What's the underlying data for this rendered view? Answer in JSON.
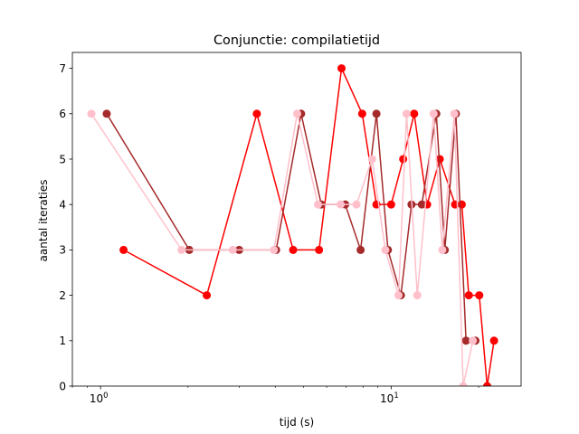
{
  "chart_data": {
    "type": "line",
    "title": "Conjunctie: compilatietijd",
    "xlabel": "tijd (s)",
    "ylabel": "aantal iteraties",
    "xscale": "log",
    "xlim": [
      0.8,
      28
    ],
    "ylim": [
      0,
      7.35
    ],
    "xticks": [
      {
        "value": 1,
        "base": "10",
        "exp": "0"
      },
      {
        "value": 10,
        "base": "10",
        "exp": "1"
      }
    ],
    "yticks": [
      "0",
      "1",
      "2",
      "3",
      "4",
      "5",
      "6",
      "7"
    ],
    "grid": false,
    "series": [
      {
        "name": "series-red",
        "color": "#ff0000",
        "x": [
          1.2,
          2.32,
          3.45,
          4.6,
          5.65,
          6.75,
          7.95,
          8.9,
          10.0,
          11.0,
          12.0,
          13.3,
          14.7,
          16.6,
          17.5,
          18.5,
          20.1,
          21.4,
          22.6
        ],
        "y": [
          3,
          2,
          6,
          3,
          3,
          7,
          6,
          4,
          4,
          5,
          6,
          4,
          5,
          4,
          4,
          2,
          2,
          0,
          1
        ]
      },
      {
        "name": "series-brown",
        "color": "#a52a2a",
        "x": [
          1.05,
          2.02,
          3.0,
          4.02,
          4.9,
          5.75,
          6.95,
          7.85,
          8.9,
          9.75,
          10.8,
          11.75,
          12.75,
          14.3,
          15.3,
          16.7,
          18.1,
          19.5
        ],
        "y": [
          6,
          3,
          3,
          3,
          6,
          4,
          4,
          3,
          6,
          3,
          2,
          4,
          4,
          6,
          3,
          6,
          1,
          1
        ]
      },
      {
        "name": "series-pink",
        "color": "#ffc0cb",
        "x": [
          0.93,
          1.9,
          2.85,
          3.95,
          4.75,
          5.6,
          6.7,
          7.6,
          8.6,
          9.55,
          10.6,
          11.3,
          12.3,
          14.0,
          15.0,
          16.5,
          17.7,
          19.1
        ],
        "y": [
          6,
          3,
          3,
          3,
          6,
          4,
          4,
          4,
          5,
          3,
          2,
          6,
          2,
          6,
          3,
          6,
          0,
          1
        ]
      }
    ]
  }
}
